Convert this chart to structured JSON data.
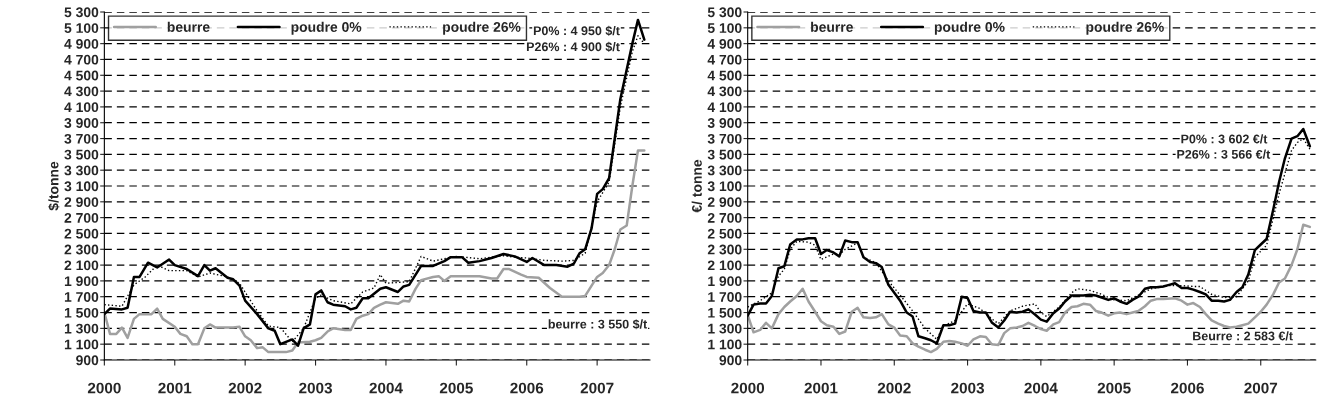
{
  "chart_data": [
    {
      "type": "line",
      "ylabel": "$/tonne",
      "xlim": [
        2000,
        2007.75
      ],
      "xticks": [
        2000,
        2001,
        2002,
        2003,
        2004,
        2005,
        2006,
        2007
      ],
      "ylim": [
        900,
        5300
      ],
      "yticks": [
        900,
        {
          "value": 1100,
          "label": "1 100"
        },
        {
          "value": 1300,
          "label": "1 300"
        },
        {
          "value": 1500,
          "label": "1 500"
        },
        {
          "value": 1700,
          "label": "1 700"
        },
        {
          "value": 1900,
          "label": "1 900"
        },
        {
          "value": 2100,
          "label": "2 100"
        },
        {
          "value": 2300,
          "label": "2 300"
        },
        {
          "value": 2500,
          "label": "2 500"
        },
        {
          "value": 2700,
          "label": "2 700"
        },
        {
          "value": 2900,
          "label": "2 900"
        },
        {
          "value": 3100,
          "label": "3 100"
        },
        {
          "value": 3300,
          "label": "3 300"
        },
        {
          "value": 3500,
          "label": "3 500"
        },
        {
          "value": 3700,
          "label": "3 700"
        },
        {
          "value": 3900,
          "label": "3 900"
        },
        {
          "value": 4100,
          "label": "4 100"
        },
        {
          "value": 4300,
          "label": "4 300"
        },
        {
          "value": 4500,
          "label": "4 500"
        },
        {
          "value": 4700,
          "label": "4 700"
        },
        {
          "value": 4900,
          "label": "4 900"
        },
        {
          "value": 5100,
          "label": "5 100"
        },
        {
          "value": 5300,
          "label": "5 300"
        }
      ],
      "grid": "y",
      "legend": "top left",
      "marker": "none",
      "series": [
        {
          "name": "beurre",
          "color": "#a0a0a0",
          "line_style": "solid",
          "x": [
            2000.0,
            2000.08,
            2000.17,
            2000.25,
            2000.33,
            2000.42,
            2000.5,
            2000.67,
            2000.75,
            2000.83,
            2001.0,
            2001.08,
            2001.17,
            2001.25,
            2001.33,
            2001.42,
            2001.5,
            2001.58,
            2001.83,
            2001.92,
            2002.0,
            2002.08,
            2002.17,
            2002.25,
            2002.33,
            2002.58,
            2002.67,
            2002.75,
            2002.92,
            2003.0,
            2003.08,
            2003.17,
            2003.25,
            2003.42,
            2003.5,
            2003.58,
            2003.67,
            2003.75,
            2003.83,
            2003.92,
            2004.0,
            2004.17,
            2004.25,
            2004.33,
            2004.42,
            2004.5,
            2004.67,
            2004.75,
            2004.83,
            2004.92,
            2005.33,
            2005.5,
            2005.58,
            2005.67,
            2005.75,
            2005.92,
            2006.0,
            2006.17,
            2006.33,
            2006.5,
            2006.75,
            2006.83,
            2007.0,
            2007.08,
            2007.17,
            2007.25,
            2007.33,
            2007.42,
            2007.5,
            2007.58,
            2007.67
          ],
          "values": [
            1500,
            1230,
            1230,
            1310,
            1180,
            1420,
            1480,
            1480,
            1550,
            1420,
            1320,
            1230,
            1200,
            1100,
            1100,
            1300,
            1350,
            1310,
            1310,
            1320,
            1200,
            1150,
            1050,
            1060,
            1000,
            1000,
            1020,
            1120,
            1130,
            1150,
            1180,
            1260,
            1300,
            1280,
            1280,
            1420,
            1460,
            1480,
            1560,
            1600,
            1630,
            1610,
            1650,
            1640,
            1800,
            1910,
            1950,
            1960,
            1900,
            1960,
            1960,
            1930,
            1930,
            2050,
            2050,
            1980,
            1950,
            1940,
            1810,
            1700,
            1700,
            1710,
            1950,
            2000,
            2100,
            2300,
            2550,
            2600,
            3100,
            3550,
            3550
          ]
        },
        {
          "name": "poudre 0%",
          "color": "#000000",
          "line_style": "solid",
          "x": [
            2000.0,
            2000.08,
            2000.25,
            2000.33,
            2000.42,
            2000.5,
            2000.62,
            2000.75,
            2000.92,
            2001.0,
            2001.17,
            2001.33,
            2001.42,
            2001.5,
            2001.58,
            2001.75,
            2001.83,
            2001.92,
            2002.0,
            2002.17,
            2002.33,
            2002.42,
            2002.5,
            2002.67,
            2002.75,
            2002.83,
            2002.92,
            2003.0,
            2003.08,
            2003.17,
            2003.25,
            2003.42,
            2003.5,
            2003.58,
            2003.67,
            2003.75,
            2003.92,
            2004.0,
            2004.17,
            2004.25,
            2004.33,
            2004.5,
            2004.67,
            2004.83,
            2004.92,
            2005.08,
            2005.17,
            2005.33,
            2005.5,
            2005.67,
            2005.83,
            2006.0,
            2006.08,
            2006.25,
            2006.42,
            2006.58,
            2006.67,
            2006.75,
            2006.83,
            2006.92,
            2007.0,
            2007.08,
            2007.17,
            2007.25,
            2007.33,
            2007.5,
            2007.58,
            2007.67
          ],
          "values": [
            1480,
            1550,
            1540,
            1560,
            1950,
            1950,
            2130,
            2070,
            2170,
            2100,
            2050,
            1960,
            2100,
            2030,
            2060,
            1940,
            1920,
            1840,
            1650,
            1480,
            1300,
            1270,
            1100,
            1160,
            1080,
            1300,
            1350,
            1730,
            1780,
            1630,
            1600,
            1580,
            1540,
            1560,
            1680,
            1680,
            1800,
            1820,
            1760,
            1830,
            1850,
            2090,
            2090,
            2150,
            2200,
            2200,
            2130,
            2150,
            2190,
            2240,
            2210,
            2140,
            2190,
            2100,
            2100,
            2080,
            2120,
            2250,
            2300,
            2560,
            3000,
            3060,
            3200,
            3700,
            4200,
            4900,
            5200,
            4950
          ]
        },
        {
          "name": "poudre 26%",
          "color": "#000000",
          "line_style": "dotted",
          "x": [
            2000.0,
            2000.25,
            2000.42,
            2000.58,
            2000.75,
            2000.92,
            2001.17,
            2001.33,
            2001.5,
            2001.75,
            2001.92,
            2002.17,
            2002.33,
            2002.5,
            2002.67,
            2002.83,
            2003.0,
            2003.08,
            2003.25,
            2003.5,
            2003.67,
            2003.83,
            2003.92,
            2004.0,
            2004.17,
            2004.33,
            2004.5,
            2004.67,
            2004.83,
            2005.0,
            2005.33,
            2005.5,
            2005.67,
            2005.83,
            2006.0,
            2006.25,
            2006.5,
            2006.67,
            2006.83,
            2006.92,
            2007.0,
            2007.17,
            2007.33,
            2007.5,
            2007.58,
            2007.67
          ],
          "values": [
            1600,
            1580,
            1850,
            1950,
            2100,
            2030,
            2030,
            1950,
            2000,
            1950,
            1870,
            1520,
            1330,
            1310,
            1130,
            1300,
            1680,
            1720,
            1650,
            1610,
            1760,
            1810,
            1980,
            1870,
            1880,
            1890,
            2210,
            2150,
            2180,
            2210,
            2180,
            2200,
            2220,
            2200,
            2190,
            2160,
            2150,
            2160,
            2250,
            2580,
            2900,
            3150,
            4100,
            4800,
            5000,
            4900
          ]
        }
      ],
      "annotations": [
        "P0% : 4 950 $/t",
        "P26% : 4 900 $/t",
        "beurre : 3 550 $/t"
      ]
    },
    {
      "type": "line",
      "ylabel": "€/ tonne",
      "xlim": [
        2000,
        2007.75
      ],
      "xticks": [
        2000,
        2001,
        2002,
        2003,
        2004,
        2005,
        2006,
        2007
      ],
      "ylim": [
        900,
        5300
      ],
      "yticks": [
        900,
        {
          "value": 1100,
          "label": "1 100"
        },
        {
          "value": 1300,
          "label": "1 300"
        },
        {
          "value": 1500,
          "label": "1 500"
        },
        {
          "value": 1700,
          "label": "1 700"
        },
        {
          "value": 1900,
          "label": "1 900"
        },
        {
          "value": 2100,
          "label": "2 100"
        },
        {
          "value": 2300,
          "label": "2 300"
        },
        {
          "value": 2500,
          "label": "2 500"
        },
        {
          "value": 2700,
          "label": "2 700"
        },
        {
          "value": 2900,
          "label": "2 900"
        },
        {
          "value": 3100,
          "label": "3 100"
        },
        {
          "value": 3300,
          "label": "3 300"
        },
        {
          "value": 3500,
          "label": "3 500"
        },
        {
          "value": 3700,
          "label": "3 700"
        },
        {
          "value": 3900,
          "label": "3 900"
        },
        {
          "value": 4100,
          "label": "4 100"
        },
        {
          "value": 4300,
          "label": "4 300"
        },
        {
          "value": 4500,
          "label": "4 500"
        },
        {
          "value": 4700,
          "label": "4 700"
        },
        {
          "value": 4900,
          "label": "4 900"
        },
        {
          "value": 5100,
          "label": "5 100"
        },
        {
          "value": 5300,
          "label": "5 300"
        }
      ],
      "grid": "y",
      "legend": "top left",
      "marker": "none",
      "series": [
        {
          "name": "beurre",
          "color": "#a0a0a0",
          "line_style": "solid",
          "x": [
            2000.0,
            2000.08,
            2000.17,
            2000.25,
            2000.33,
            2000.42,
            2000.5,
            2000.58,
            2000.67,
            2000.75,
            2000.83,
            2000.92,
            2001.0,
            2001.08,
            2001.17,
            2001.25,
            2001.33,
            2001.42,
            2001.5,
            2001.58,
            2001.67,
            2001.75,
            2001.83,
            2001.92,
            2002.0,
            2002.08,
            2002.17,
            2002.25,
            2002.33,
            2002.42,
            2002.5,
            2002.58,
            2002.67,
            2002.75,
            2002.83,
            2002.92,
            2003.0,
            2003.08,
            2003.17,
            2003.25,
            2003.33,
            2003.42,
            2003.5,
            2003.58,
            2003.67,
            2003.75,
            2003.83,
            2003.92,
            2004.0,
            2004.08,
            2004.17,
            2004.25,
            2004.33,
            2004.42,
            2004.5,
            2004.58,
            2004.67,
            2004.75,
            2004.83,
            2004.92,
            2005.0,
            2005.08,
            2005.17,
            2005.25,
            2005.33,
            2005.42,
            2005.5,
            2005.58,
            2005.67,
            2005.83,
            2005.92,
            2006.0,
            2006.08,
            2006.17,
            2006.25,
            2006.33,
            2006.42,
            2006.5,
            2006.58,
            2006.67,
            2006.75,
            2006.83,
            2006.92,
            2007.0,
            2007.08,
            2007.17,
            2007.25,
            2007.33,
            2007.42,
            2007.5,
            2007.58,
            2007.67
          ],
          "values": [
            1470,
            1250,
            1280,
            1370,
            1300,
            1480,
            1570,
            1640,
            1710,
            1800,
            1640,
            1510,
            1390,
            1340,
            1320,
            1230,
            1260,
            1510,
            1560,
            1440,
            1430,
            1440,
            1480,
            1350,
            1310,
            1210,
            1200,
            1110,
            1070,
            1030,
            1000,
            1040,
            1130,
            1140,
            1130,
            1110,
            1080,
            1160,
            1200,
            1190,
            1100,
            1090,
            1240,
            1300,
            1310,
            1330,
            1370,
            1330,
            1290,
            1270,
            1350,
            1380,
            1500,
            1570,
            1580,
            1610,
            1600,
            1520,
            1500,
            1460,
            1490,
            1500,
            1480,
            1500,
            1520,
            1580,
            1650,
            1670,
            1670,
            1680,
            1650,
            1600,
            1620,
            1570,
            1480,
            1400,
            1360,
            1330,
            1310,
            1320,
            1340,
            1360,
            1440,
            1510,
            1600,
            1730,
            1880,
            1930,
            2100,
            2300,
            2610,
            2583
          ]
        },
        {
          "name": "poudre 0%",
          "color": "#000000",
          "line_style": "solid",
          "x": [
            2000.0,
            2000.08,
            2000.17,
            2000.25,
            2000.33,
            2000.42,
            2000.5,
            2000.58,
            2000.67,
            2000.75,
            2000.83,
            2000.92,
            2001.0,
            2001.08,
            2001.17,
            2001.25,
            2001.33,
            2001.42,
            2001.5,
            2001.58,
            2001.67,
            2001.75,
            2001.83,
            2001.92,
            2002.0,
            2002.08,
            2002.17,
            2002.25,
            2002.33,
            2002.42,
            2002.5,
            2002.58,
            2002.67,
            2002.75,
            2002.83,
            2002.92,
            2003.0,
            2003.08,
            2003.17,
            2003.25,
            2003.33,
            2003.42,
            2003.5,
            2003.58,
            2003.67,
            2003.75,
            2003.83,
            2003.92,
            2004.0,
            2004.08,
            2004.17,
            2004.25,
            2004.33,
            2004.42,
            2004.5,
            2004.58,
            2004.67,
            2004.75,
            2004.83,
            2004.92,
            2005.0,
            2005.08,
            2005.17,
            2005.25,
            2005.33,
            2005.42,
            2005.5,
            2005.58,
            2005.67,
            2005.75,
            2005.83,
            2005.92,
            2006.0,
            2006.08,
            2006.17,
            2006.25,
            2006.33,
            2006.42,
            2006.5,
            2006.58,
            2006.67,
            2006.75,
            2006.83,
            2006.92,
            2007.0,
            2007.08,
            2007.17,
            2007.25,
            2007.33,
            2007.42,
            2007.5,
            2007.58,
            2007.67
          ],
          "values": [
            1460,
            1600,
            1615,
            1615,
            1710,
            2060,
            2085,
            2360,
            2425,
            2425,
            2440,
            2440,
            2240,
            2290,
            2260,
            2210,
            2410,
            2390,
            2390,
            2200,
            2140,
            2125,
            2075,
            1850,
            1750,
            1650,
            1500,
            1450,
            1200,
            1175,
            1150,
            1110,
            1340,
            1340,
            1360,
            1700,
            1685,
            1520,
            1500,
            1500,
            1375,
            1310,
            1400,
            1510,
            1500,
            1510,
            1540,
            1475,
            1410,
            1385,
            1490,
            1550,
            1640,
            1715,
            1715,
            1715,
            1725,
            1715,
            1690,
            1660,
            1680,
            1640,
            1610,
            1660,
            1700,
            1800,
            1820,
            1820,
            1830,
            1850,
            1870,
            1810,
            1810,
            1790,
            1760,
            1730,
            1650,
            1650,
            1640,
            1660,
            1760,
            1820,
            1980,
            2290,
            2360,
            2430,
            2800,
            3150,
            3450,
            3700,
            3730,
            3820,
            3602
          ]
        },
        {
          "name": "poudre 26%",
          "color": "#000000",
          "line_style": "dotted",
          "x": [
            2000.0,
            2000.17,
            2000.33,
            2000.42,
            2000.5,
            2000.58,
            2000.67,
            2000.83,
            2000.92,
            2001.0,
            2001.17,
            2001.25,
            2001.33,
            2001.5,
            2001.58,
            2001.75,
            2001.92,
            2002.08,
            2002.25,
            2002.42,
            2002.58,
            2002.67,
            2002.83,
            2003.0,
            2003.17,
            2003.33,
            2003.42,
            2003.58,
            2003.75,
            2003.92,
            2004.0,
            2004.08,
            2004.25,
            2004.42,
            2004.5,
            2004.67,
            2004.83,
            2005.0,
            2005.17,
            2005.33,
            2005.5,
            2005.75,
            2005.92,
            2006.08,
            2006.17,
            2006.33,
            2006.5,
            2006.67,
            2006.83,
            2006.92,
            2007.08,
            2007.25,
            2007.42,
            2007.5,
            2007.58,
            2007.67
          ],
          "values": [
            1570,
            1650,
            1750,
            1960,
            2050,
            2300,
            2400,
            2390,
            2350,
            2170,
            2240,
            2230,
            2300,
            2380,
            2200,
            2130,
            1900,
            1720,
            1520,
            1300,
            1160,
            1330,
            1400,
            1610,
            1550,
            1420,
            1360,
            1520,
            1580,
            1610,
            1500,
            1450,
            1570,
            1750,
            1800,
            1780,
            1730,
            1660,
            1650,
            1720,
            1800,
            1840,
            1840,
            1830,
            1830,
            1730,
            1690,
            1700,
            1900,
            2200,
            2350,
            3000,
            3550,
            3650,
            3700,
            3566
          ]
        }
      ],
      "annotations": [
        "P0% : 3 602 €/t",
        "P26% : 3 566 €/t",
        "Beurre : 2 583 €/t"
      ]
    }
  ]
}
